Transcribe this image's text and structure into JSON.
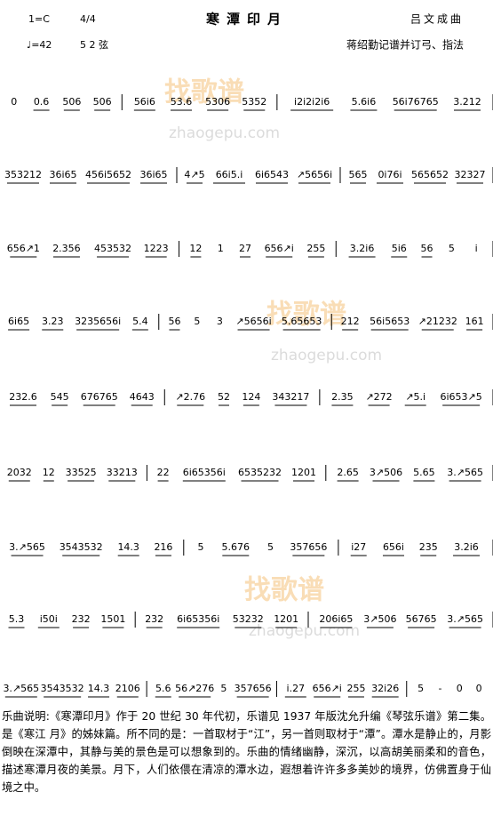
{
  "header": {
    "key": "1=C",
    "meter": "4/4",
    "title": "寒潭印月",
    "composer": "吕文成曲",
    "tempo": "♩=42",
    "tuning": "5 2 弦",
    "arranger": "蒋绍勤记谱并订弓、指法"
  },
  "watermark": {
    "text": "找歌谱",
    "url": "zhaogepu.com"
  },
  "score": {
    "lines": [
      [
        [
          "0",
          "0.6",
          "506",
          "506"
        ],
        [
          "56i6",
          "53.6",
          "5306",
          "5352"
        ],
        [
          "i2i2i2i6",
          "5.6i6",
          "56i76765",
          "3.212"
        ]
      ],
      [
        [
          "353212",
          "36i65",
          "456i5652",
          "36i65"
        ],
        [
          "4↗5",
          "66i5.i",
          "6i6543",
          "↗5656i"
        ],
        [
          "565",
          "0i76i",
          "565652",
          "32327"
        ]
      ],
      [
        [
          "656↗1",
          "2.356",
          "453532",
          "1223"
        ],
        [
          "12",
          "1",
          "27",
          "656↗i",
          "255"
        ],
        [
          "3.2i6",
          "5i6",
          "56",
          "5",
          "i"
        ]
      ],
      [
        [
          "6i65",
          "3.23",
          "3235656i",
          "5.4"
        ],
        [
          "56",
          "5",
          "3",
          "↗5656i",
          "5.65653"
        ],
        [
          "212",
          "56i5653",
          "↗21232",
          "161"
        ]
      ],
      [
        [
          "232.6",
          "545",
          "676765",
          "4643"
        ],
        [
          "↗2.76",
          "52",
          "124",
          "343217"
        ],
        [
          "2.35",
          "↗272",
          "↗5.i",
          "6i653↗5"
        ]
      ],
      [
        [
          "2032",
          "12",
          "33525",
          "33213"
        ],
        [
          "22",
          "6i65356i",
          "6535232",
          "1201"
        ],
        [
          "2.65",
          "3↗506",
          "5.65",
          "3.↗565"
        ]
      ],
      [
        [
          "3.↗565",
          "3543532",
          "14.3",
          "216"
        ],
        [
          "5",
          "5.676",
          "5",
          "357656"
        ],
        [
          "i27",
          "656i",
          "235",
          "3.2i6"
        ]
      ],
      [
        [
          "5.3",
          "i50i",
          "232",
          "1501"
        ],
        [
          "232",
          "6i65356i",
          "53232",
          "1201"
        ],
        [
          "206i65",
          "3↗506",
          "56765",
          "3.↗565"
        ]
      ],
      [
        [
          "3.↗565",
          "3543532",
          "14.3",
          "2106"
        ],
        [
          "5.6",
          "56↗276",
          "5",
          "357656"
        ],
        [
          "i.27",
          "656↗i",
          "255",
          "32i26"
        ],
        [
          "5",
          "-",
          "0",
          "0"
        ]
      ]
    ]
  },
  "description": "乐曲说明:《寒潭印月》作于 20 世纪 30 年代初，乐谱见 1937 年版沈允升编《琴弦乐谱》第二集。是《寒江 月》的姊妹篇。所不同的是：一首取材于“江”，另一首则取材于“潭”。潭水是静止的，月影倒映在深潭中，其静与美的景色是可以想象到的。乐曲的情绪幽静，深沉，以高胡美丽柔和的音色，描述寒潭月夜的美景。月下，人们依偎在清凉的潭水边，遐想着许许多多美妙的境界，仿佛置身于仙境之中。"
}
